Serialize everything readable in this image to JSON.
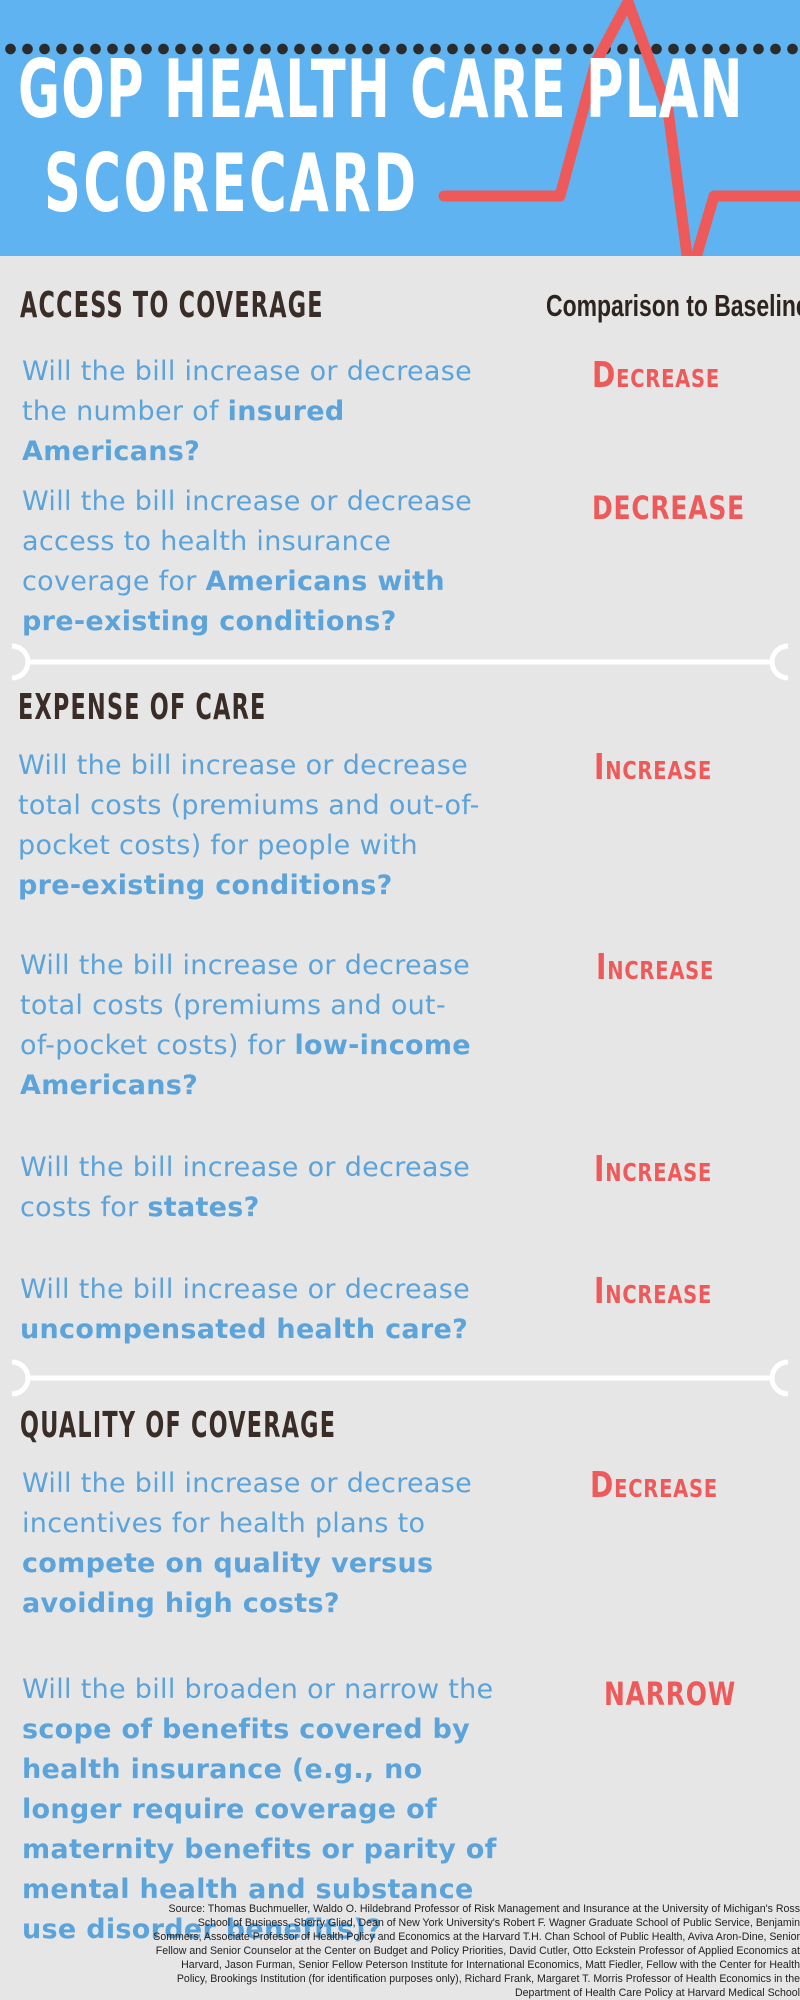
{
  "header": {
    "title_line1": "GOP HEALTH CARE PLAN",
    "title_line2": "SCORECARD"
  },
  "comparison_label": "Comparison to Baseline",
  "sections": [
    {
      "title": "ACCESS TO COVERAGE",
      "questions": [
        {
          "q_plain": "Will the bill increase or decrease the number of ",
          "q_bold": "insured Americans?",
          "answer": "Decrease"
        },
        {
          "q_plain": "Will the bill increase or decrease access to health insurance coverage for ",
          "q_bold": "Americans with pre-existing conditions?",
          "answer": "DECREASE"
        }
      ]
    },
    {
      "title": "EXPENSE OF CARE",
      "questions": [
        {
          "q_plain": "Will the bill increase or decrease total costs (premiums and out-of-pocket costs) for people with ",
          "q_bold": "pre-existing conditions?",
          "answer": "Increase"
        },
        {
          "q_plain": "Will the bill increase or decrease total costs (premiums and out-of-pocket costs) for ",
          "q_bold": "low-income Americans?",
          "answer": "Increase"
        },
        {
          "q_plain": "Will the bill increase or decrease costs for ",
          "q_bold": "states?",
          "answer": "Increase"
        },
        {
          "q_plain": "Will the bill increase or decrease ",
          "q_bold": "uncompensated health care?",
          "answer": "Increase"
        }
      ]
    },
    {
      "title": "QUALITY OF COVERAGE",
      "questions": [
        {
          "q_plain": "Will the bill increase or decrease incentives for health plans to ",
          "q_bold": "compete on quality versus avoiding high costs?",
          "answer": "Decrease"
        },
        {
          "q_plain": "Will the bill broaden or narrow the ",
          "q_bold": "scope of benefits covered by health insurance",
          "q_tail_plain": " (e.g., ",
          "q_tail_bold": "no longer require coverage of maternity benefits or parity of mental health and substance use disorder benefits",
          "q_end_plain": ")?",
          "answer": "NARROW"
        }
      ]
    }
  ],
  "source": "Source: Thomas Buchmueller, Waldo O. Hildebrand Professor of Risk Management and Insurance at the University of Michigan's Ross School of Business, Sherry Glied, Dean of New York University's Robert F. Wagner Graduate School of Public Service, Benjamin Sommers, Associate Professor of Health Policy and Economics at the Harvard T.H. Chan School of Public Health, Aviva Aron-Dine, Senior Fellow and Senior Counselor at the Center on Budget and Policy Priorities, David Cutler, Otto Eckstein Professor of Applied Economics at Harvard, Jason Furman, Senior Fellow Peterson Institute for International Economics, Matt Fiedler, Fellow with the Center for Health Policy, Brookings Institution (for identification purposes only), Richard Frank, Margaret T. Morris Professor of Health Economics in the Department of Health Care Policy at Harvard Medical School",
  "colors": {
    "header_bg": "#5eb3f0",
    "page_bg": "#e6e6e6",
    "question_text": "#5aa3db",
    "answer_text": "#ee5a5a",
    "section_title": "#3a2d28",
    "ekg_line": "#ee5a5a"
  },
  "icons": [
    "ekg-heartbeat-icon",
    "bracket-divider-icon"
  ]
}
